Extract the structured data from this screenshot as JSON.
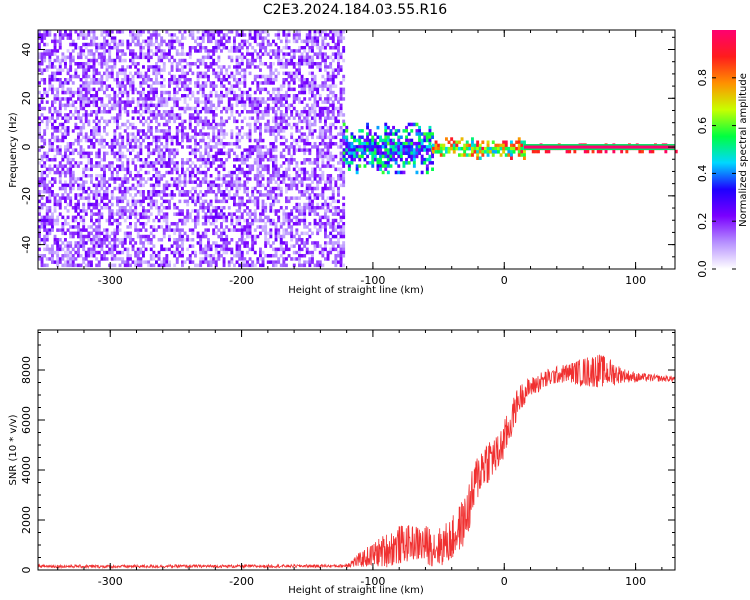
{
  "title": "C2E3.2024.184.03.55.R16",
  "chart_data": [
    {
      "type": "heatmap",
      "xlabel": "Height of straight line (km)",
      "ylabel": "Frequency (Hz)",
      "xlim": [
        -355,
        130
      ],
      "ylim": [
        -50,
        48
      ],
      "x_ticks": [
        -300,
        -200,
        -100,
        0,
        100
      ],
      "x_tick_labels": [
        "-300",
        "-200",
        "-100",
        "0",
        "100"
      ],
      "y_ticks": [
        -40,
        -20,
        0,
        20,
        40
      ],
      "y_tick_labels": [
        "-40",
        "-20",
        "0",
        "20",
        "40"
      ],
      "colorbar": {
        "label": "Normalized spectral amplitude",
        "range": [
          0,
          1
        ],
        "ticks": [
          0.0,
          0.2,
          0.4,
          0.6,
          0.8
        ],
        "tick_labels": [
          "0.0",
          "0.2",
          "0.4",
          "0.6",
          "0.8"
        ],
        "colors": [
          "#ffffff",
          "#b690ff",
          "#7a00ff",
          "#1e00ff",
          "#00d8ff",
          "#00ff40",
          "#c8ff00",
          "#ff9000",
          "#ff1c1c",
          "#ff0070"
        ]
      },
      "regions": [
        {
          "x_range": [
            -355,
            -123
          ],
          "freq_halfwidth": 48,
          "amplitude": [
            0.05,
            0.25
          ],
          "description_level": "noise"
        },
        {
          "x_range": [
            -123,
            -55
          ],
          "freq_center": 0,
          "freq_halfwidth": 10,
          "amplitude": [
            0.2,
            0.6
          ]
        },
        {
          "x_range": [
            -55,
            15
          ],
          "freq_center": 0,
          "freq_halfwidth": 4,
          "amplitude": [
            0.4,
            0.95
          ]
        },
        {
          "x_range": [
            15,
            130
          ],
          "freq_center": 0,
          "freq_halfwidth": 1.5,
          "amplitude": [
            0.85,
            1.0
          ]
        }
      ],
      "line": {
        "x_range": [
          15,
          130
        ],
        "freq": 0,
        "color": "#ff0070"
      }
    },
    {
      "type": "line",
      "xlabel": "Height of straight line (km)",
      "ylabel": "SNR (10 * v/v)",
      "xlim": [
        -355,
        130
      ],
      "ylim": [
        0,
        9600
      ],
      "x_ticks": [
        -300,
        -200,
        -100,
        0,
        100
      ],
      "x_tick_labels": [
        "-300",
        "-200",
        "-100",
        "0",
        "100"
      ],
      "y_ticks": [
        0,
        2000,
        4000,
        6000,
        8000
      ],
      "y_tick_labels": [
        "0",
        "2000",
        "4000",
        "6000",
        "8000"
      ],
      "color": "#f03030",
      "series": [
        {
          "x": [
            -355,
            -300,
            -250,
            -200,
            -150,
            -122,
            -110,
            -100,
            -90,
            -80,
            -70,
            -60,
            -50,
            -40,
            -30,
            -25,
            -20,
            -15,
            -10,
            -5,
            0,
            5,
            10,
            15,
            20,
            30,
            40,
            50,
            60,
            70,
            80,
            90,
            100,
            110,
            120,
            130
          ],
          "values": [
            150,
            140,
            150,
            150,
            160,
            160,
            400,
            600,
            800,
            1000,
            1100,
            1000,
            900,
            1200,
            2000,
            2800,
            3800,
            4300,
            4500,
            4600,
            5200,
            5900,
            6700,
            7100,
            7300,
            7600,
            7800,
            7900,
            7900,
            8000,
            7900,
            7800,
            7700,
            7700,
            7650,
            7650
          ],
          "noise": [
            60,
            60,
            60,
            60,
            60,
            60,
            300,
            500,
            700,
            800,
            700,
            800,
            800,
            900,
            1000,
            1100,
            1000,
            1000,
            900,
            800,
            800,
            700,
            600,
            500,
            400,
            400,
            350,
            400,
            600,
            700,
            600,
            300,
            200,
            150,
            120,
            120
          ]
        }
      ]
    }
  ]
}
